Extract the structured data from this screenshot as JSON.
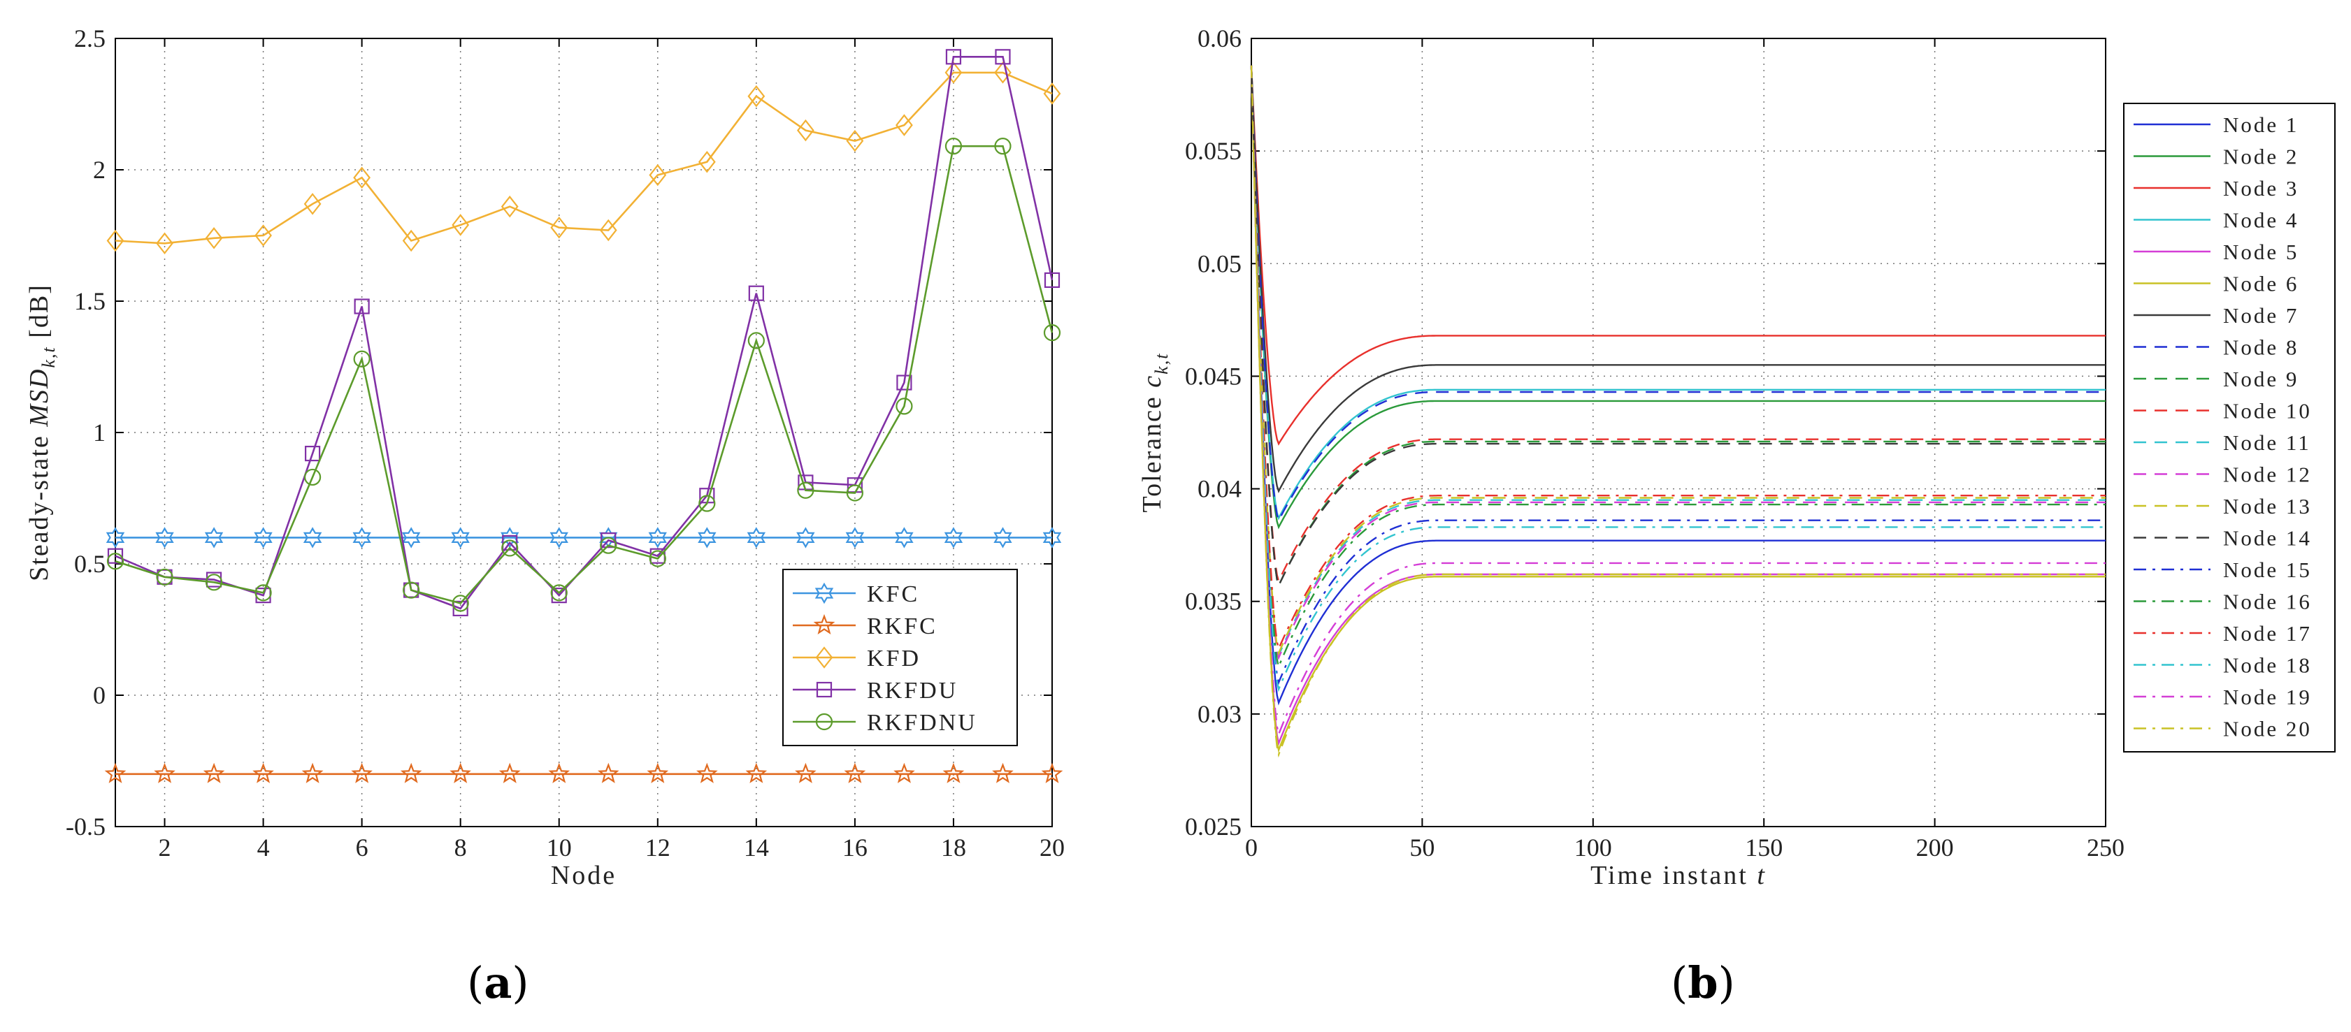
{
  "figure": {
    "panel_a_label": "a",
    "panel_b_label": "b"
  },
  "chart_data": [
    {
      "id": "a",
      "type": "line",
      "title": "",
      "xlabel": "Node",
      "ylabel": "Steady-state MSD_{k,t} [dB]",
      "ylabel_parts": [
        "Steady-state ",
        "MSD",
        "k,t",
        " [dB]"
      ],
      "xlim": [
        1,
        20
      ],
      "ylim": [
        -0.5,
        2.5
      ],
      "xticks": [
        2,
        4,
        6,
        8,
        10,
        12,
        14,
        16,
        18,
        20
      ],
      "yticks": [
        -0.5,
        0,
        0.5,
        1,
        1.5,
        2,
        2.5
      ],
      "ytick_labels": [
        "-0.5",
        "0",
        "0.5",
        "1",
        "1.5",
        "2",
        "2.5"
      ],
      "grid": true,
      "legend_position": "bottom-right",
      "x": [
        1,
        2,
        3,
        4,
        5,
        6,
        7,
        8,
        9,
        10,
        11,
        12,
        13,
        14,
        15,
        16,
        17,
        18,
        19,
        20
      ],
      "series": [
        {
          "name": "KFC",
          "color": "#3d95e0",
          "marker": "hexagram",
          "values": [
            0.6,
            0.6,
            0.6,
            0.6,
            0.6,
            0.6,
            0.6,
            0.6,
            0.6,
            0.6,
            0.6,
            0.6,
            0.6,
            0.6,
            0.6,
            0.6,
            0.6,
            0.6,
            0.6,
            0.6
          ]
        },
        {
          "name": "RKFC",
          "color": "#e06a1f",
          "marker": "pentagram",
          "values": [
            -0.3,
            -0.3,
            -0.3,
            -0.3,
            -0.3,
            -0.3,
            -0.3,
            -0.3,
            -0.3,
            -0.3,
            -0.3,
            -0.3,
            -0.3,
            -0.3,
            -0.3,
            -0.3,
            -0.3,
            -0.3,
            -0.3,
            -0.3
          ]
        },
        {
          "name": "KFD",
          "color": "#f2b134",
          "marker": "diamond",
          "values": [
            1.73,
            1.72,
            1.74,
            1.75,
            1.87,
            1.97,
            1.73,
            1.79,
            1.86,
            1.78,
            1.77,
            1.98,
            2.03,
            2.28,
            2.15,
            2.11,
            2.17,
            2.37,
            2.37,
            2.29
          ]
        },
        {
          "name": "RKFDU",
          "color": "#8131a6",
          "marker": "square",
          "values": [
            0.53,
            0.45,
            0.44,
            0.38,
            0.92,
            1.48,
            0.4,
            0.33,
            0.58,
            0.38,
            0.59,
            0.53,
            0.76,
            1.53,
            0.81,
            0.8,
            1.19,
            2.43,
            2.43,
            1.58
          ]
        },
        {
          "name": "RKFDNU",
          "color": "#5c9b2b",
          "marker": "circle",
          "values": [
            0.51,
            0.45,
            0.43,
            0.39,
            0.83,
            1.28,
            0.4,
            0.35,
            0.56,
            0.39,
            0.57,
            0.52,
            0.73,
            1.35,
            0.78,
            0.77,
            1.1,
            2.09,
            2.09,
            1.38
          ]
        }
      ]
    },
    {
      "id": "b",
      "type": "line",
      "title": "",
      "xlabel": "Time instant t",
      "xlabel_parts": [
        "Time instant ",
        "t"
      ],
      "ylabel": "Tolerance c_{k,t}",
      "ylabel_parts": [
        "Tolerance ",
        "c",
        "k,t"
      ],
      "xlim": [
        0,
        250
      ],
      "ylim": [
        0.025,
        0.06
      ],
      "xticks": [
        0,
        50,
        100,
        150,
        200,
        250
      ],
      "yticks": [
        0.025,
        0.03,
        0.035,
        0.04,
        0.045,
        0.05,
        0.055,
        0.06
      ],
      "ytick_labels": [
        "0.025",
        "0.03",
        "0.035",
        "0.04",
        "0.045",
        "0.05",
        "0.055",
        "0.06"
      ],
      "grid": true,
      "legend_position": "outside-right",
      "curve_model": {
        "start": 0.0588,
        "min_time": 8,
        "settle_time": 55
      },
      "series": [
        {
          "name": "Node 1",
          "color": "#1f2fd4",
          "dash": "solid",
          "minimum": 0.0305,
          "steady": 0.0377
        },
        {
          "name": "Node 2",
          "color": "#2a9a3a",
          "dash": "solid",
          "minimum": 0.0383,
          "steady": 0.0439
        },
        {
          "name": "Node 3",
          "color": "#e8302c",
          "dash": "solid",
          "minimum": 0.042,
          "steady": 0.0468
        },
        {
          "name": "Node 4",
          "color": "#32c4cf",
          "dash": "solid",
          "minimum": 0.0387,
          "steady": 0.0444
        },
        {
          "name": "Node 5",
          "color": "#d43ed6",
          "dash": "solid",
          "minimum": 0.0287,
          "steady": 0.0362
        },
        {
          "name": "Node 6",
          "color": "#c9c225",
          "dash": "solid",
          "minimum": 0.0284,
          "steady": 0.0361
        },
        {
          "name": "Node 7",
          "color": "#3a3a3a",
          "dash": "solid",
          "minimum": 0.0399,
          "steady": 0.0455
        },
        {
          "name": "Node 8",
          "color": "#1f2fd4",
          "dash": "dashed",
          "minimum": 0.0386,
          "steady": 0.0443
        },
        {
          "name": "Node 9",
          "color": "#2a9a3a",
          "dash": "dashed",
          "minimum": 0.0357,
          "steady": 0.0421
        },
        {
          "name": "Node 10",
          "color": "#e8302c",
          "dash": "dashed",
          "minimum": 0.0359,
          "steady": 0.0422
        },
        {
          "name": "Node 11",
          "color": "#32c4cf",
          "dash": "dashed",
          "minimum": 0.0326,
          "steady": 0.0395
        },
        {
          "name": "Node 12",
          "color": "#d43ed6",
          "dash": "dashed",
          "minimum": 0.0325,
          "steady": 0.0394
        },
        {
          "name": "Node 13",
          "color": "#c9c225",
          "dash": "dashed",
          "minimum": 0.0327,
          "steady": 0.0396
        },
        {
          "name": "Node 14",
          "color": "#3a3a3a",
          "dash": "dashed",
          "minimum": 0.0357,
          "steady": 0.042
        },
        {
          "name": "Node 15",
          "color": "#1f2fd4",
          "dash": "dashdot",
          "minimum": 0.0314,
          "steady": 0.0386
        },
        {
          "name": "Node 16",
          "color": "#2a9a3a",
          "dash": "dashdot",
          "minimum": 0.0321,
          "steady": 0.0393
        },
        {
          "name": "Node 17",
          "color": "#e8302c",
          "dash": "dashdot",
          "minimum": 0.0329,
          "steady": 0.0397
        },
        {
          "name": "Node 18",
          "color": "#32c4cf",
          "dash": "dashdot",
          "minimum": 0.0311,
          "steady": 0.0383
        },
        {
          "name": "Node 19",
          "color": "#d43ed6",
          "dash": "dashdot",
          "minimum": 0.0291,
          "steady": 0.0367
        },
        {
          "name": "Node 20",
          "color": "#c9c225",
          "dash": "dashdot",
          "minimum": 0.0282,
          "steady": 0.0362
        }
      ]
    }
  ]
}
